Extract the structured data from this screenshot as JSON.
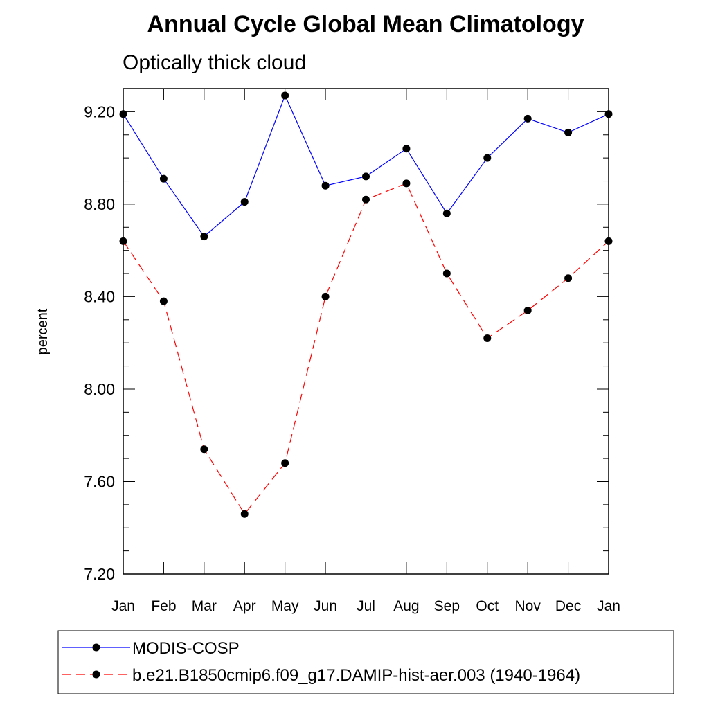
{
  "chart_data": {
    "type": "line",
    "title": "Annual Cycle Global Mean Climatology",
    "subtitle": "Optically thick cloud",
    "ylabel": "percent",
    "xlabel": "",
    "categories": [
      "Jan",
      "Feb",
      "Mar",
      "Apr",
      "May",
      "Jun",
      "Jul",
      "Aug",
      "Sep",
      "Oct",
      "Nov",
      "Dec",
      "Jan"
    ],
    "ylim": [
      7.2,
      9.3
    ],
    "yticks": [
      "9.20",
      "8.80",
      "8.40",
      "8.00",
      "7.60",
      "7.20"
    ],
    "ytick_values": [
      9.2,
      8.8,
      8.4,
      8.0,
      7.6,
      7.2
    ],
    "grid": false,
    "legend": "bottom",
    "series": [
      {
        "name": "MODIS-COSP",
        "color": "#0000ff",
        "dash": "solid",
        "values": [
          9.19,
          8.91,
          8.66,
          8.81,
          9.27,
          8.88,
          8.92,
          9.04,
          8.76,
          9.0,
          9.17,
          9.11,
          9.19
        ]
      },
      {
        "name": "b.e21.B1850cmip6.f09_g17.DAMIP-hist-aer.003 (1940-1964)",
        "color": "#ff0000",
        "dash": "dashed",
        "values": [
          8.64,
          8.38,
          7.74,
          7.46,
          7.68,
          8.4,
          8.82,
          8.89,
          8.5,
          8.22,
          8.34,
          8.48,
          8.64
        ]
      }
    ]
  }
}
